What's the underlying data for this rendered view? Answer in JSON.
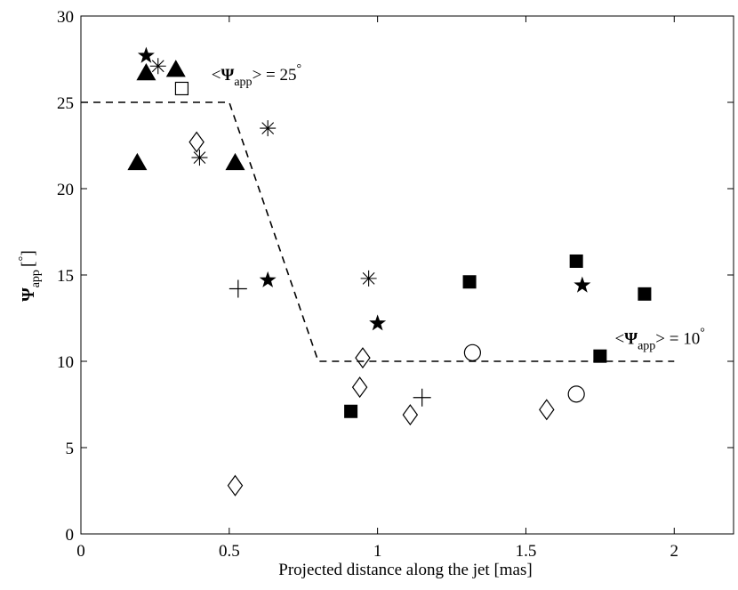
{
  "chart_data": {
    "type": "scatter",
    "title": "",
    "xlabel": "Projected distance along the jet [mas]",
    "ylabel": {
      "main": "Ψ",
      "sub": "app",
      "unit_open": "[",
      "unit_sup": "°",
      "unit_close": "]"
    },
    "xlim": [
      0,
      2.2
    ],
    "ylim": [
      0,
      30
    ],
    "x_ticks": [
      0,
      0.5,
      1,
      1.5,
      2
    ],
    "x_tick_labels": [
      "0",
      "0.5",
      "1",
      "1.5",
      "2"
    ],
    "y_ticks": [
      0,
      5,
      10,
      15,
      20,
      25,
      30
    ],
    "y_tick_labels": [
      "0",
      "5",
      "10",
      "15",
      "20",
      "25",
      "30"
    ],
    "grid": false,
    "reference_line": {
      "style": "dashed",
      "x": [
        0,
        0.5,
        0.8,
        2.0
      ],
      "y": [
        25,
        25,
        10,
        10
      ]
    },
    "annotations": [
      {
        "x": 0.44,
        "y": 26.3,
        "lt": "<",
        "psi": "Ψ",
        "sub": "app",
        "rest": "> = 25",
        "sup": "°"
      },
      {
        "x": 1.8,
        "y": 11.0,
        "lt": "<",
        "psi": "Ψ",
        "sub": "app",
        "rest": "> = 10",
        "sup": "°"
      }
    ],
    "series": [
      {
        "name": "filled star",
        "marker": "star-filled",
        "points": [
          [
            0.22,
            27.7
          ],
          [
            0.63,
            14.7
          ],
          [
            1.0,
            12.2
          ],
          [
            1.69,
            14.4
          ]
        ]
      },
      {
        "name": "filled triangle",
        "marker": "triangle-filled",
        "points": [
          [
            0.22,
            26.7
          ],
          [
            0.32,
            26.9
          ],
          [
            0.19,
            21.5
          ],
          [
            0.52,
            21.5
          ]
        ]
      },
      {
        "name": "asterisk",
        "marker": "asterisk",
        "points": [
          [
            0.26,
            27.1
          ],
          [
            0.4,
            21.8
          ],
          [
            0.63,
            23.5
          ],
          [
            0.97,
            14.8
          ]
        ]
      },
      {
        "name": "open square",
        "marker": "square-open",
        "points": [
          [
            0.34,
            25.8
          ]
        ]
      },
      {
        "name": "open diamond",
        "marker": "diamond-open",
        "points": [
          [
            0.39,
            22.7
          ],
          [
            0.95,
            10.2
          ],
          [
            0.94,
            8.5
          ],
          [
            1.11,
            6.9
          ],
          [
            1.57,
            7.2
          ],
          [
            0.52,
            2.8
          ]
        ]
      },
      {
        "name": "plus",
        "marker": "plus",
        "points": [
          [
            0.53,
            14.2
          ],
          [
            1.15,
            7.9
          ]
        ]
      },
      {
        "name": "filled square",
        "marker": "square-filled",
        "points": [
          [
            0.91,
            7.1
          ],
          [
            1.31,
            14.6
          ],
          [
            1.67,
            15.8
          ],
          [
            1.75,
            10.3
          ],
          [
            1.9,
            13.9
          ]
        ]
      },
      {
        "name": "open circle",
        "marker": "circle-open",
        "points": [
          [
            1.32,
            10.5
          ],
          [
            1.67,
            8.1
          ]
        ]
      }
    ]
  }
}
